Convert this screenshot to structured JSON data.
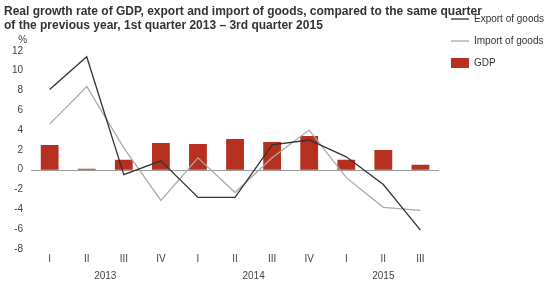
{
  "chart_data": {
    "type": "bar",
    "title": [
      "Real growth rate of GDP, export and import of goods, compared to the same quarter",
      "of the previous year, 1st quarter 2013 – 3rd quarter 2015"
    ],
    "ylabel": "%",
    "categories": [
      "I",
      "II",
      "III",
      "IV",
      "I",
      "II",
      "III",
      "IV",
      "I",
      "II",
      "III"
    ],
    "groups": [
      {
        "label": "2013",
        "count": 4
      },
      {
        "label": "2014",
        "count": 4
      },
      {
        "label": "2015",
        "count": 3
      }
    ],
    "series": [
      {
        "name": "GDP",
        "type": "bar",
        "color": "#b5301e",
        "values": [
          2.5,
          0.1,
          1.0,
          2.7,
          2.6,
          3.1,
          2.8,
          3.4,
          1.0,
          2.0,
          0.5
        ]
      },
      {
        "name": "Export of goods",
        "type": "line",
        "color": "#333333",
        "values": [
          8.1,
          11.4,
          -0.5,
          0.9,
          -2.8,
          -2.8,
          2.5,
          3.0,
          1.3,
          -1.5,
          -6.1
        ]
      },
      {
        "name": "Import of goods",
        "type": "line",
        "color": "#aaaaaa",
        "values": [
          4.6,
          8.4,
          2.2,
          -3.1,
          1.2,
          -2.3,
          1.2,
          4.0,
          -0.8,
          -3.8,
          -4.1
        ]
      }
    ],
    "ylim": [
      -8,
      12
    ],
    "yticks": [
      -8,
      -6,
      -4,
      -2,
      0,
      2,
      4,
      6,
      8,
      10,
      12
    ],
    "grid": false,
    "legend": "right"
  }
}
